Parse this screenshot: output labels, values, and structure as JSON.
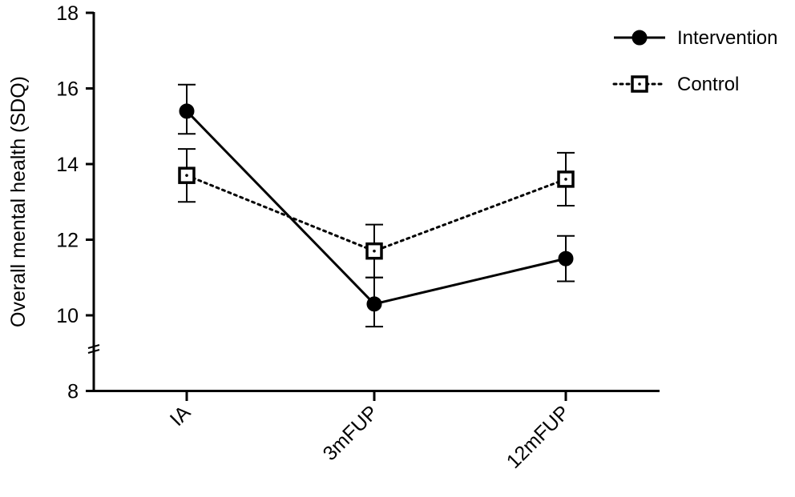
{
  "chart_data": {
    "type": "line",
    "title": "",
    "xlabel": "",
    "ylabel": "Overall mental health (SDQ)",
    "categories": [
      "IA",
      "3mFUP",
      "12mFUP"
    ],
    "ylim": [
      8,
      18
    ],
    "yticks": [
      8,
      10,
      12,
      14,
      16,
      18
    ],
    "axis_break": true,
    "legend_position": "top-right",
    "series": [
      {
        "name": "Intervention",
        "values": [
          15.4,
          10.3,
          11.5
        ],
        "error_low": [
          14.8,
          9.7,
          10.9
        ],
        "error_high": [
          16.1,
          11.0,
          12.1
        ],
        "line": "solid",
        "marker": "filled-circle",
        "color": "#000000"
      },
      {
        "name": "Control",
        "values": [
          13.7,
          11.7,
          13.6
        ],
        "error_low": [
          13.0,
          11.0,
          12.9
        ],
        "error_high": [
          14.4,
          12.4,
          14.3
        ],
        "line": "dotted",
        "marker": "open-square",
        "color": "#000000"
      }
    ]
  }
}
